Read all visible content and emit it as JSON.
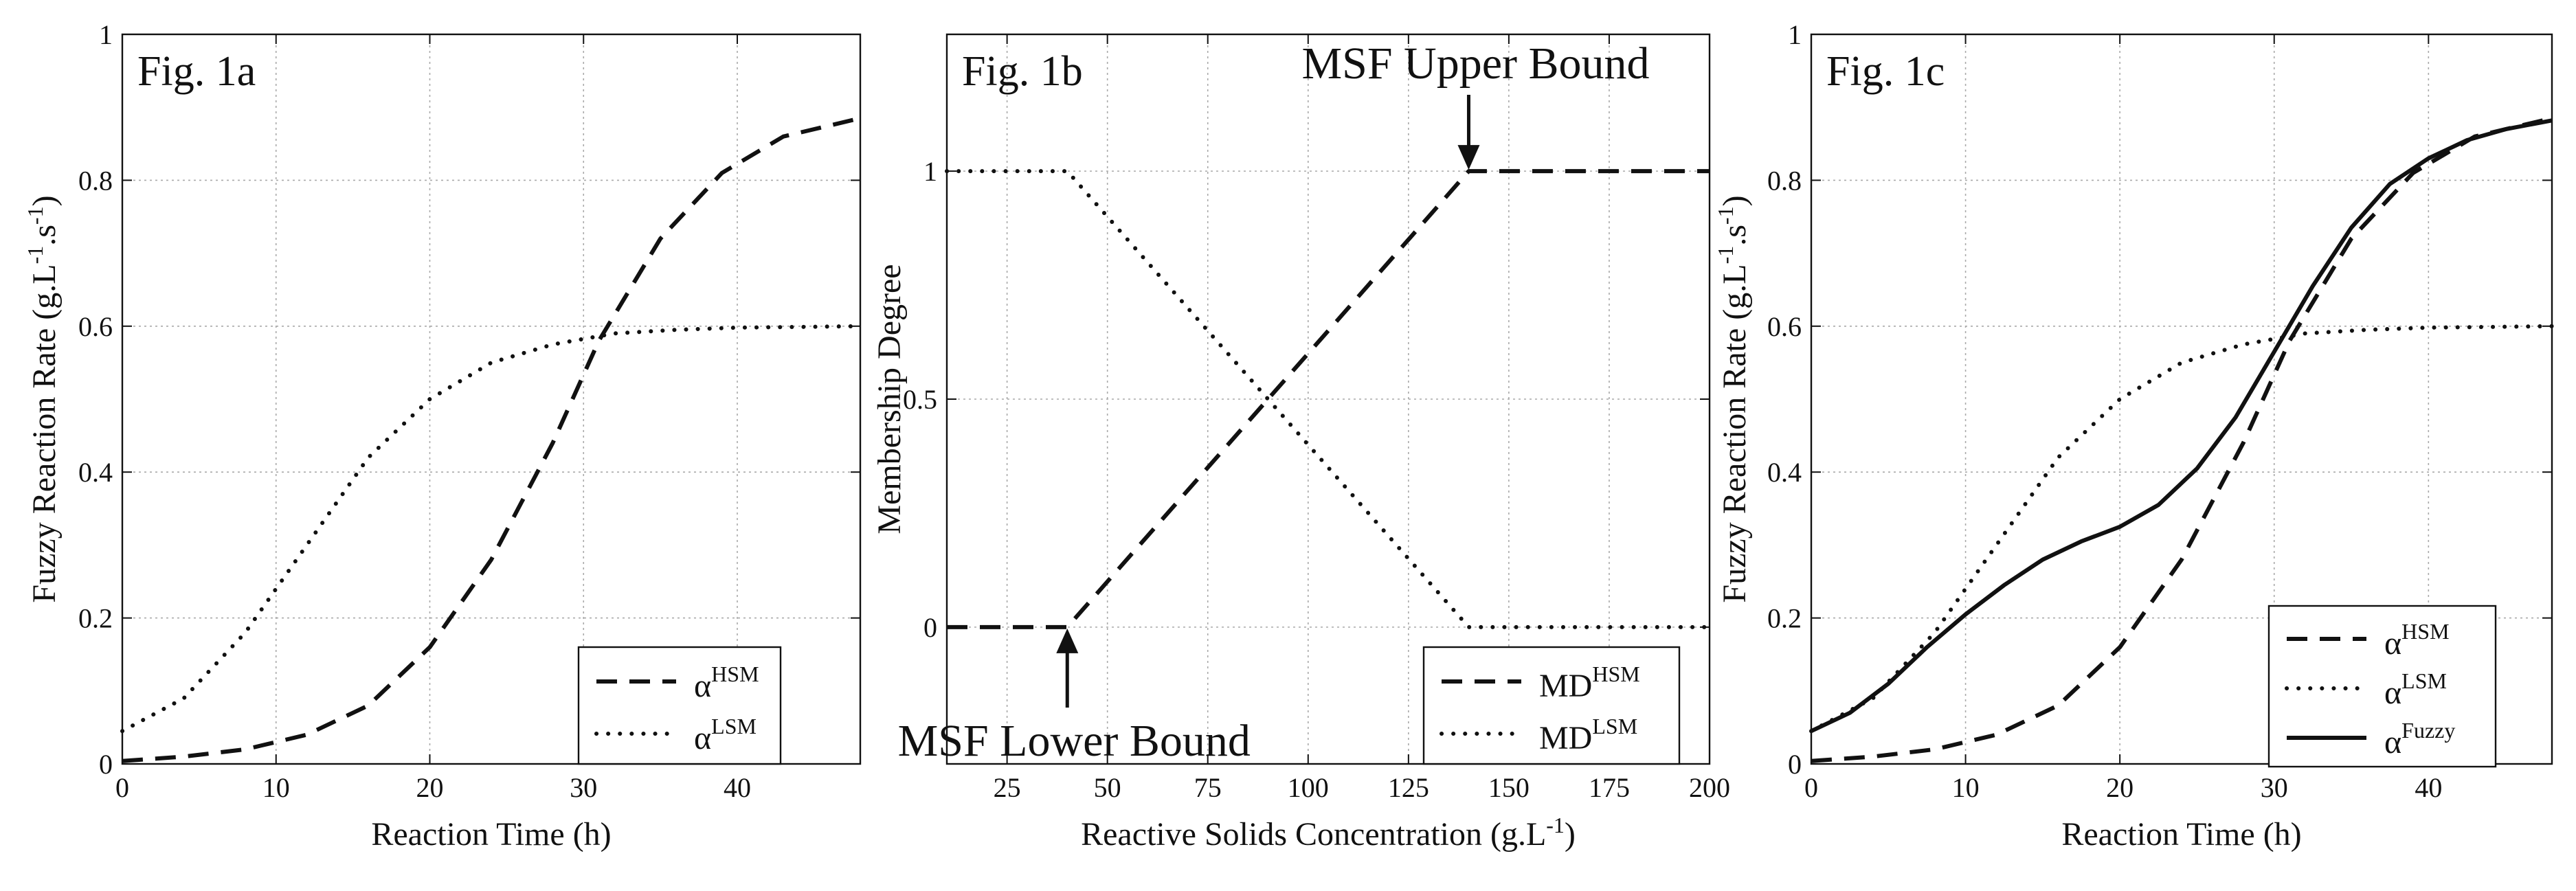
{
  "chart_data": [
    {
      "type": "line",
      "panel_label": "Fig. 1a",
      "xlabel": "Reaction Time (h)",
      "ylabel": "Fuzzy Reaction Rate",
      "ylabel_units": {
        "pre": " (g.L",
        "sup1": "-1",
        "mid": ".s",
        "sup2": "-1",
        "post": ")"
      },
      "xlim": [
        0,
        48
      ],
      "ylim": [
        0,
        1
      ],
      "xticks": [
        0,
        10,
        20,
        30,
        40
      ],
      "xtick_labels": [
        "0",
        "10",
        "20",
        "30",
        "40"
      ],
      "yticks": [
        0,
        0.2,
        0.4,
        0.6,
        0.8,
        1
      ],
      "ytick_labels": [
        "0",
        "0.2",
        "0.4",
        "0.6",
        "0.8",
        "1"
      ],
      "grid": true,
      "legend_position": "bottom-right",
      "series": [
        {
          "name": "α",
          "sup": "HSM",
          "style": "dashed",
          "x": [
            0,
            4,
            8,
            12,
            16,
            20,
            24,
            28,
            31,
            35,
            39,
            43,
            48
          ],
          "y": [
            0.004,
            0.01,
            0.02,
            0.04,
            0.08,
            0.16,
            0.28,
            0.44,
            0.58,
            0.72,
            0.81,
            0.86,
            0.885
          ]
        },
        {
          "name": "α",
          "sup": "LSM",
          "style": "dotted",
          "x": [
            0,
            4,
            8,
            12,
            16,
            20,
            24,
            28,
            32,
            36,
            40,
            44,
            48
          ],
          "y": [
            0.045,
            0.09,
            0.18,
            0.3,
            0.42,
            0.5,
            0.55,
            0.575,
            0.59,
            0.595,
            0.598,
            0.599,
            0.6
          ]
        }
      ]
    },
    {
      "type": "line",
      "panel_label": "Fig. 1b",
      "xlabel": "Reactive Solids Concentration",
      "xlabel_units": {
        "pre": " (g.L",
        "sup1": "-1",
        "post": ")"
      },
      "ylabel": "Membership Degree",
      "xlim": [
        10,
        200
      ],
      "ylim": [
        -0.3,
        1.3
      ],
      "xticks": [
        25,
        50,
        75,
        100,
        125,
        150,
        175,
        200
      ],
      "xtick_labels": [
        "25",
        "50",
        "75",
        "100",
        "125",
        "150",
        "175",
        "200"
      ],
      "yticks": [
        0,
        0.5,
        1
      ],
      "ytick_labels": [
        "0",
        "0.5",
        "1"
      ],
      "grid": true,
      "legend_position": "bottom-right",
      "annotations": [
        {
          "text": "MSF Upper Bound",
          "x": 140,
          "y": 1
        },
        {
          "text": "MSF Lower Bound",
          "x": 40,
          "y": 0
        }
      ],
      "series": [
        {
          "name": "MD",
          "sup": "HSM",
          "style": "dashed",
          "x": [
            10,
            40,
            140,
            200
          ],
          "y": [
            0,
            0,
            1,
            1
          ]
        },
        {
          "name": "MD",
          "sup": "LSM",
          "style": "dotted",
          "x": [
            10,
            40,
            140,
            200
          ],
          "y": [
            1,
            1,
            0,
            0
          ]
        }
      ]
    },
    {
      "type": "line",
      "panel_label": "Fig. 1c",
      "xlabel": "Reaction Time (h)",
      "ylabel": "Fuzzy Reaction Rate",
      "ylabel_units": {
        "pre": " (g.L",
        "sup1": "-1",
        "mid": ".s",
        "sup2": "-1",
        "post": ")"
      },
      "xlim": [
        0,
        48
      ],
      "ylim": [
        0,
        1
      ],
      "xticks": [
        0,
        10,
        20,
        30,
        40
      ],
      "xtick_labels": [
        "0",
        "10",
        "20",
        "30",
        "40"
      ],
      "yticks": [
        0,
        0.2,
        0.4,
        0.6,
        0.8,
        1
      ],
      "ytick_labels": [
        "0",
        "0.2",
        "0.4",
        "0.6",
        "0.8",
        "1"
      ],
      "grid": true,
      "legend_position": "bottom-right",
      "series": [
        {
          "name": "α",
          "sup": "HSM",
          "style": "dashed",
          "x": [
            0,
            4,
            8,
            12,
            16,
            20,
            24,
            28,
            31,
            35,
            39,
            43,
            48
          ],
          "y": [
            0.004,
            0.01,
            0.02,
            0.04,
            0.08,
            0.16,
            0.28,
            0.44,
            0.58,
            0.72,
            0.81,
            0.86,
            0.885
          ]
        },
        {
          "name": "α",
          "sup": "LSM",
          "style": "dotted",
          "x": [
            0,
            4,
            8,
            12,
            16,
            20,
            24,
            28,
            32,
            36,
            40,
            44,
            48
          ],
          "y": [
            0.045,
            0.09,
            0.18,
            0.3,
            0.42,
            0.5,
            0.55,
            0.575,
            0.59,
            0.595,
            0.598,
            0.599,
            0.6
          ]
        },
        {
          "name": "α",
          "sup": "Fuzzy",
          "style": "solid",
          "x": [
            0,
            2.5,
            5,
            7.5,
            10,
            12.5,
            15,
            17.5,
            20,
            22.5,
            25,
            27.5,
            30,
            32.5,
            35,
            37.5,
            40,
            42.5,
            45,
            48
          ],
          "y": [
            0.045,
            0.07,
            0.11,
            0.16,
            0.205,
            0.245,
            0.28,
            0.305,
            0.325,
            0.355,
            0.405,
            0.475,
            0.565,
            0.655,
            0.735,
            0.795,
            0.83,
            0.855,
            0.87,
            0.882
          ]
        }
      ]
    }
  ]
}
